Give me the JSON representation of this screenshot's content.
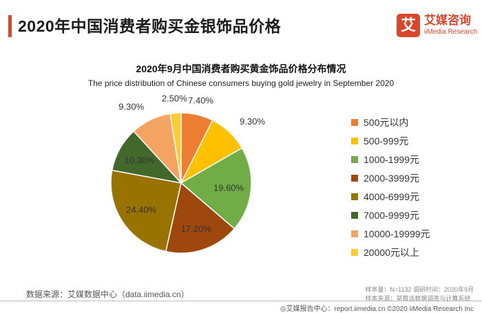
{
  "header": {
    "title": "2020年中国消费者购买金银饰品价格",
    "logo_mark": "艾",
    "logo_cn": "艾媒咨询",
    "logo_en": "iiMedia Research"
  },
  "chart_data": {
    "type": "pie",
    "title": "2020年9月中国消费者购买黄金饰品价格分布情况",
    "subtitle": "The price distribution of Chinese consumers buying gold jewelry in September 2020",
    "slices": [
      {
        "label": "500元以内",
        "value": 7.4,
        "value_label": "7.40%",
        "color": "#ed7d31"
      },
      {
        "label": "500-999元",
        "value": 9.3,
        "value_label": "9.30%",
        "color": "#ffc000"
      },
      {
        "label": "1000-1999元",
        "value": 19.6,
        "value_label": "19.60%",
        "color": "#70ad47"
      },
      {
        "label": "2000-3999元",
        "value": 17.2,
        "value_label": "17.20%",
        "color": "#9e480e"
      },
      {
        "label": "4000-6999元",
        "value": 24.4,
        "value_label": "24.40%",
        "color": "#997300"
      },
      {
        "label": "7000-9999元",
        "value": 10.3,
        "value_label": "10.30%",
        "color": "#43682b"
      },
      {
        "label": "10000-19999元",
        "value": 9.3,
        "value_label": "9.30%",
        "color": "#f4a460"
      },
      {
        "label": "20000元以上",
        "value": 2.5,
        "value_label": "2.50%",
        "color": "#ffcc33"
      }
    ],
    "legend_position": "right"
  },
  "footer": {
    "source": "数据来源：艾媒数据中心（data.iimedia.cn）",
    "sample": "样本量：N=1132    调研时间：2020年9月",
    "sample2": "样本来源：草莓派数据调查与计算系统",
    "report": "◎艾媒报告中心：report.iimedia.cn  ©2020 iiMedia Research Inc"
  }
}
